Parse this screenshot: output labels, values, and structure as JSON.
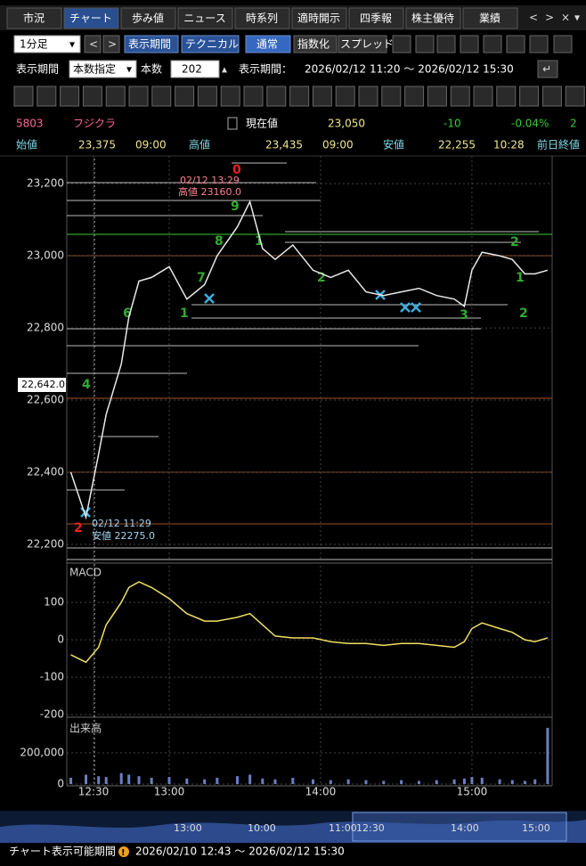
{
  "tabs": [
    "市況",
    "チャート",
    "歩み値",
    "ニュース",
    "時系列",
    "適時開示",
    "四季報",
    "株主優待",
    "業績"
  ],
  "toolbar": {
    "interval": "1分足",
    "period_button": "表示期間",
    "technical": "テクニカル",
    "modes": [
      "通常",
      "指数化",
      "スプレッド"
    ]
  },
  "period": {
    "label": "表示期間",
    "mode": "本数指定",
    "count_label": "本数",
    "count": 202,
    "range_label": "表示期間：",
    "range": "2026/02/12 11:20 〜 2026/02/12 15:30"
  },
  "quote": {
    "code": "5803",
    "name": "フジクラ",
    "current_label": "現在値",
    "current": "23,050",
    "change": "-10",
    "change_pct": "-0.04%",
    "extra": "2"
  },
  "ohlc": {
    "open_label": "始値",
    "open": "23,375",
    "open_time": "09:00",
    "high_label": "高値",
    "high": "23,435",
    "high_time": "09:00",
    "low_label": "安値",
    "low": "22,255",
    "low_time": "10:28",
    "prev_label": "前日終値"
  },
  "chart_data": [
    {
      "type": "line",
      "color": "#e8e8e8",
      "x": [
        741,
        747,
        752,
        755,
        761,
        764,
        768,
        773,
        780,
        787,
        794,
        799,
        807,
        812,
        817,
        822,
        829,
        837,
        844,
        851,
        858,
        865,
        872,
        879,
        886,
        893,
        897,
        900,
        904,
        911,
        916,
        921,
        925,
        930
      ],
      "values": [
        22400,
        22275,
        22450,
        22560,
        22700,
        22830,
        22930,
        22940,
        22970,
        22880,
        22920,
        23000,
        23080,
        23150,
        23020,
        22990,
        23030,
        22960,
        22940,
        22960,
        22900,
        22890,
        22900,
        22910,
        22890,
        22880,
        22860,
        22960,
        23010,
        23000,
        22990,
        22950,
        22950,
        22960
      ],
      "xlim": [
        739.4,
        931.8
      ],
      "ylim": [
        22153,
        23277
      ],
      "yticks": [
        {
          "value": 23200,
          "label": "23,200"
        },
        {
          "value": 23000,
          "label": "23,000"
        },
        {
          "value": 22800,
          "label": "22,800"
        },
        {
          "value": 22600,
          "label": "22,600"
        },
        {
          "value": 22400,
          "label": "22,400"
        },
        {
          "value": 22200,
          "label": "22,200"
        }
      ],
      "price_marker": "22,642.0",
      "annotations": [
        "02/12 13:29",
        "高値 23160.0",
        "02/12 11:29",
        "安値 22275.0"
      ],
      "markers": [
        "0",
        "9",
        "8",
        "7",
        "6",
        "4",
        "1",
        "1",
        "2",
        "3",
        "2",
        "1",
        "2",
        "2"
      ]
    },
    {
      "type": "line",
      "title": "MACD",
      "color": "#f0e060",
      "x": [
        741,
        747,
        752,
        755,
        761,
        764,
        768,
        773,
        780,
        787,
        794,
        799,
        807,
        812,
        817,
        822,
        829,
        837,
        844,
        851,
        858,
        865,
        872,
        879,
        886,
        893,
        897,
        900,
        904,
        911,
        916,
        921,
        925,
        930
      ],
      "values": [
        -40,
        -60,
        -20,
        40,
        100,
        140,
        155,
        140,
        110,
        70,
        50,
        50,
        60,
        70,
        40,
        10,
        5,
        5,
        -5,
        -10,
        -10,
        -15,
        -10,
        -10,
        -15,
        -20,
        -5,
        30,
        45,
        30,
        20,
        0,
        -5,
        5
      ],
      "xlim": [
        739.4,
        931.8
      ],
      "ylim": [
        -195,
        198
      ],
      "yticks": [
        100,
        0,
        -100,
        -200
      ]
    },
    {
      "type": "bar",
      "title": "出来高",
      "color": "#6a7fc0",
      "x": [
        741,
        747,
        752,
        755,
        761,
        764,
        768,
        773,
        780,
        787,
        794,
        799,
        807,
        812,
        817,
        822,
        829,
        837,
        844,
        851,
        858,
        865,
        872,
        879,
        886,
        893,
        897,
        900,
        904,
        911,
        916,
        921,
        925,
        930
      ],
      "values": [
        40000,
        60000,
        50000,
        45000,
        70000,
        60000,
        50000,
        40000,
        45000,
        35000,
        30000,
        40000,
        50000,
        60000,
        35000,
        30000,
        40000,
        30000,
        25000,
        30000,
        25000,
        20000,
        25000,
        20000,
        25000,
        30000,
        35000,
        45000,
        40000,
        30000,
        25000,
        20000,
        30000,
        360000
      ],
      "xlim": [
        739.4,
        931.8
      ],
      "ylim": [
        0,
        388000
      ],
      "yticks": [
        {
          "value": 200000,
          "label": "200,000"
        },
        0
      ],
      "xticks": [
        {
          "value": 750,
          "label": "12:30"
        },
        {
          "value": 780,
          "label": "13:00"
        },
        {
          "value": 840,
          "label": "14:00"
        },
        {
          "value": 900,
          "label": "15:00"
        }
      ]
    }
  ],
  "navigator": {
    "labels": [
      "13:00",
      "10:00",
      "11:00",
      "12:30",
      "14:00",
      "15:00"
    ]
  },
  "footer": {
    "label": "チャート表示可能期間",
    "range": "2026/02/10 12:43 〜 2026/02/12 15:30"
  }
}
